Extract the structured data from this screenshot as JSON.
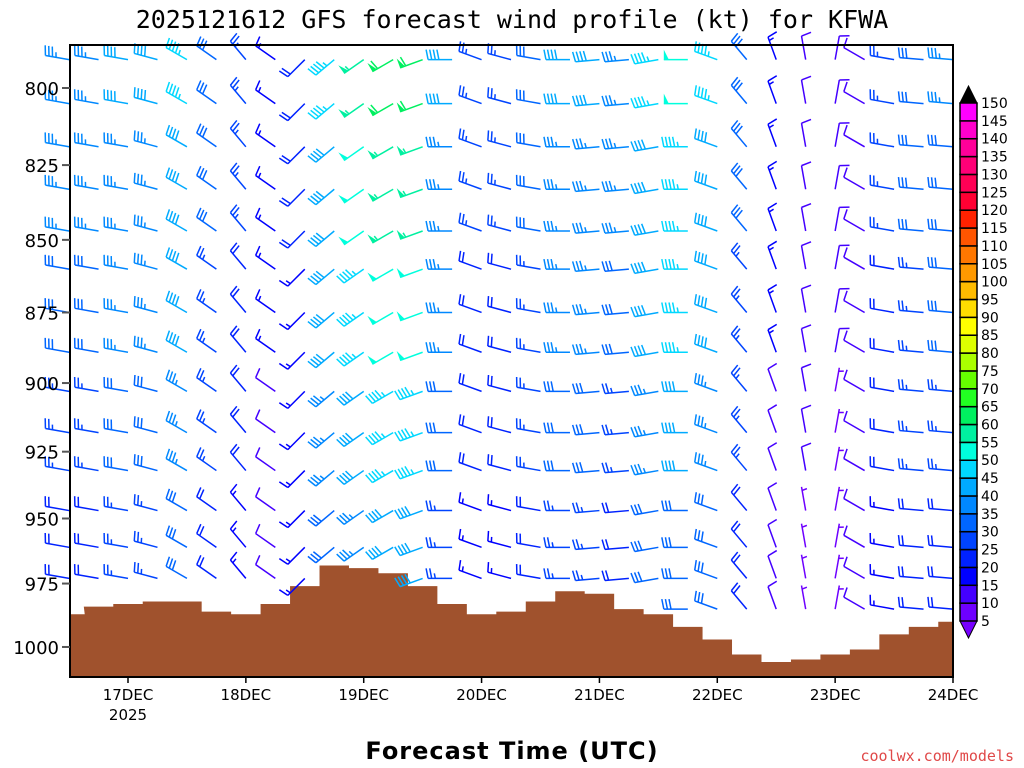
{
  "chart_data": {
    "type": "wind-barb-time-height",
    "title": "2025121612 GFS forecast wind profile (kt) for KFWA",
    "xlabel": "Forecast Time (UTC)",
    "credit": "coolwx.com/models",
    "y_ticks": [
      "800",
      "825",
      "850",
      "875",
      "900",
      "925",
      "950",
      "975",
      "1000"
    ],
    "y_tick_values": [
      800,
      825,
      850,
      875,
      900,
      925,
      950,
      975,
      1000
    ],
    "ylim": [
      1012,
      786
    ],
    "x_ticks": [
      {
        "label": "17DEC",
        "sub": "2025",
        "day": 1
      },
      {
        "label": "18DEC",
        "sub": "",
        "day": 2
      },
      {
        "label": "19DEC",
        "sub": "",
        "day": 3
      },
      {
        "label": "20DEC",
        "sub": "",
        "day": 4
      },
      {
        "label": "21DEC",
        "sub": "",
        "day": 5
      },
      {
        "label": "22DEC",
        "sub": "",
        "day": 6
      },
      {
        "label": "23DEC",
        "sub": "",
        "day": 7
      },
      {
        "label": "24DEC",
        "sub": "",
        "day": 8
      }
    ],
    "xlim_hours_from_16DEC00Z": [
      12,
      192
    ],
    "time_step_hours": 6,
    "levels_hpa": [
      791,
      805,
      819,
      833,
      847,
      860,
      875,
      889,
      903,
      918,
      932,
      947,
      961,
      973,
      985
    ],
    "surface_pressure_hpa": [
      987,
      984,
      983,
      982,
      982,
      986,
      987,
      983,
      976,
      968,
      969,
      971,
      976,
      983,
      987,
      986,
      982,
      978,
      979,
      985,
      987,
      992,
      997,
      1003,
      1006,
      1005,
      1003,
      1001,
      995,
      992,
      990
    ],
    "direction_deg": [
      280,
      280,
      280,
      285,
      300,
      305,
      320,
      305,
      225,
      230,
      235,
      240,
      250,
      270,
      290,
      285,
      280,
      270,
      265,
      265,
      260,
      270,
      290,
      320,
      340,
      350,
      10,
      300,
      280,
      275,
      275
    ],
    "speed_kt": [
      [
        35,
        35,
        40,
        40,
        45,
        30,
        25,
        15,
        20,
        45,
        55,
        60,
        60,
        40,
        25,
        25,
        30,
        40,
        40,
        35,
        45,
        50,
        45,
        30,
        15,
        10,
        10,
        10,
        25,
        30,
        35
      ],
      [
        35,
        35,
        40,
        40,
        45,
        30,
        25,
        15,
        20,
        45,
        55,
        60,
        60,
        40,
        25,
        25,
        30,
        40,
        40,
        35,
        45,
        50,
        45,
        30,
        15,
        10,
        10,
        10,
        25,
        30,
        35
      ],
      [
        35,
        35,
        35,
        35,
        40,
        30,
        25,
        15,
        20,
        40,
        50,
        55,
        55,
        35,
        25,
        25,
        30,
        35,
        35,
        35,
        40,
        45,
        40,
        30,
        15,
        10,
        10,
        10,
        25,
        30,
        30
      ],
      [
        35,
        35,
        35,
        35,
        40,
        30,
        25,
        15,
        20,
        40,
        50,
        55,
        55,
        35,
        25,
        25,
        30,
        35,
        35,
        35,
        40,
        45,
        40,
        30,
        15,
        10,
        10,
        10,
        25,
        30,
        30
      ],
      [
        35,
        35,
        35,
        35,
        40,
        30,
        25,
        15,
        20,
        40,
        50,
        55,
        55,
        35,
        25,
        25,
        30,
        35,
        35,
        35,
        40,
        45,
        40,
        30,
        15,
        10,
        10,
        10,
        25,
        30,
        30
      ],
      [
        30,
        30,
        35,
        35,
        40,
        25,
        20,
        15,
        15,
        40,
        45,
        50,
        50,
        35,
        20,
        20,
        25,
        35,
        35,
        30,
        40,
        45,
        40,
        25,
        15,
        10,
        10,
        10,
        20,
        25,
        30
      ],
      [
        30,
        30,
        35,
        35,
        40,
        25,
        20,
        15,
        15,
        40,
        45,
        50,
        50,
        35,
        20,
        20,
        25,
        35,
        35,
        30,
        40,
        45,
        40,
        25,
        15,
        10,
        10,
        10,
        20,
        25,
        30
      ],
      [
        30,
        30,
        35,
        35,
        40,
        25,
        20,
        15,
        15,
        40,
        45,
        50,
        50,
        35,
        20,
        20,
        25,
        35,
        35,
        30,
        40,
        45,
        40,
        25,
        15,
        10,
        10,
        10,
        20,
        25,
        30
      ],
      [
        25,
        25,
        30,
        30,
        35,
        25,
        20,
        10,
        15,
        35,
        40,
        45,
        45,
        30,
        20,
        20,
        25,
        30,
        30,
        25,
        35,
        40,
        35,
        25,
        10,
        10,
        5,
        10,
        20,
        25,
        25
      ],
      [
        25,
        25,
        30,
        30,
        35,
        25,
        20,
        10,
        15,
        35,
        40,
        45,
        45,
        30,
        20,
        20,
        25,
        30,
        30,
        25,
        35,
        40,
        35,
        25,
        10,
        10,
        5,
        10,
        20,
        25,
        25
      ],
      [
        25,
        25,
        30,
        30,
        35,
        25,
        20,
        10,
        15,
        35,
        40,
        45,
        45,
        30,
        20,
        20,
        25,
        30,
        30,
        25,
        35,
        40,
        35,
        25,
        10,
        10,
        5,
        10,
        20,
        25,
        25
      ],
      [
        20,
        20,
        25,
        25,
        30,
        20,
        15,
        10,
        15,
        30,
        35,
        40,
        40,
        25,
        15,
        15,
        20,
        25,
        25,
        20,
        30,
        30,
        30,
        20,
        10,
        5,
        5,
        10,
        15,
        20,
        20
      ],
      [
        20,
        20,
        25,
        25,
        30,
        20,
        15,
        10,
        15,
        30,
        35,
        40,
        40,
        25,
        15,
        15,
        20,
        25,
        25,
        20,
        30,
        30,
        30,
        20,
        10,
        5,
        5,
        10,
        15,
        20,
        20
      ],
      [
        20,
        20,
        25,
        25,
        30,
        20,
        15,
        10,
        15,
        30,
        35,
        40,
        40,
        25,
        15,
        15,
        20,
        25,
        25,
        20,
        30,
        30,
        30,
        20,
        10,
        5,
        5,
        10,
        15,
        20,
        20
      ],
      [
        20,
        20,
        25,
        25,
        30,
        20,
        15,
        10,
        15,
        30,
        35,
        40,
        40,
        25,
        15,
        15,
        20,
        25,
        25,
        20,
        30,
        30,
        30,
        20,
        10,
        5,
        5,
        10,
        15,
        20,
        20
      ]
    ],
    "colorbar": {
      "labels": [
        "5",
        "10",
        "15",
        "20",
        "25",
        "30",
        "35",
        "40",
        "45",
        "50",
        "55",
        "60",
        "65",
        "70",
        "75",
        "80",
        "85",
        "90",
        "95",
        "100",
        "105",
        "110",
        "115",
        "120",
        "125",
        "130",
        "135",
        "140",
        "145",
        "150"
      ],
      "colors": [
        "#6e00ff",
        "#4400ff",
        "#0000ff",
        "#0022ff",
        "#0044ff",
        "#0066ff",
        "#0088ff",
        "#00aaff",
        "#00d8ff",
        "#00ffdd",
        "#00f0a0",
        "#00f060",
        "#22ff22",
        "#66ff00",
        "#aaff00",
        "#ddff00",
        "#ffff00",
        "#ffdd00",
        "#ffbb00",
        "#ff9900",
        "#ff7700",
        "#ff5500",
        "#ff2200",
        "#ff0033",
        "#ff0055",
        "#ff0077",
        "#ff0099",
        "#ff00cc",
        "#ff00ff"
      ],
      "under_color": "#7700ff",
      "over_color": "#000000"
    },
    "terrain_color": "#a0522d"
  }
}
